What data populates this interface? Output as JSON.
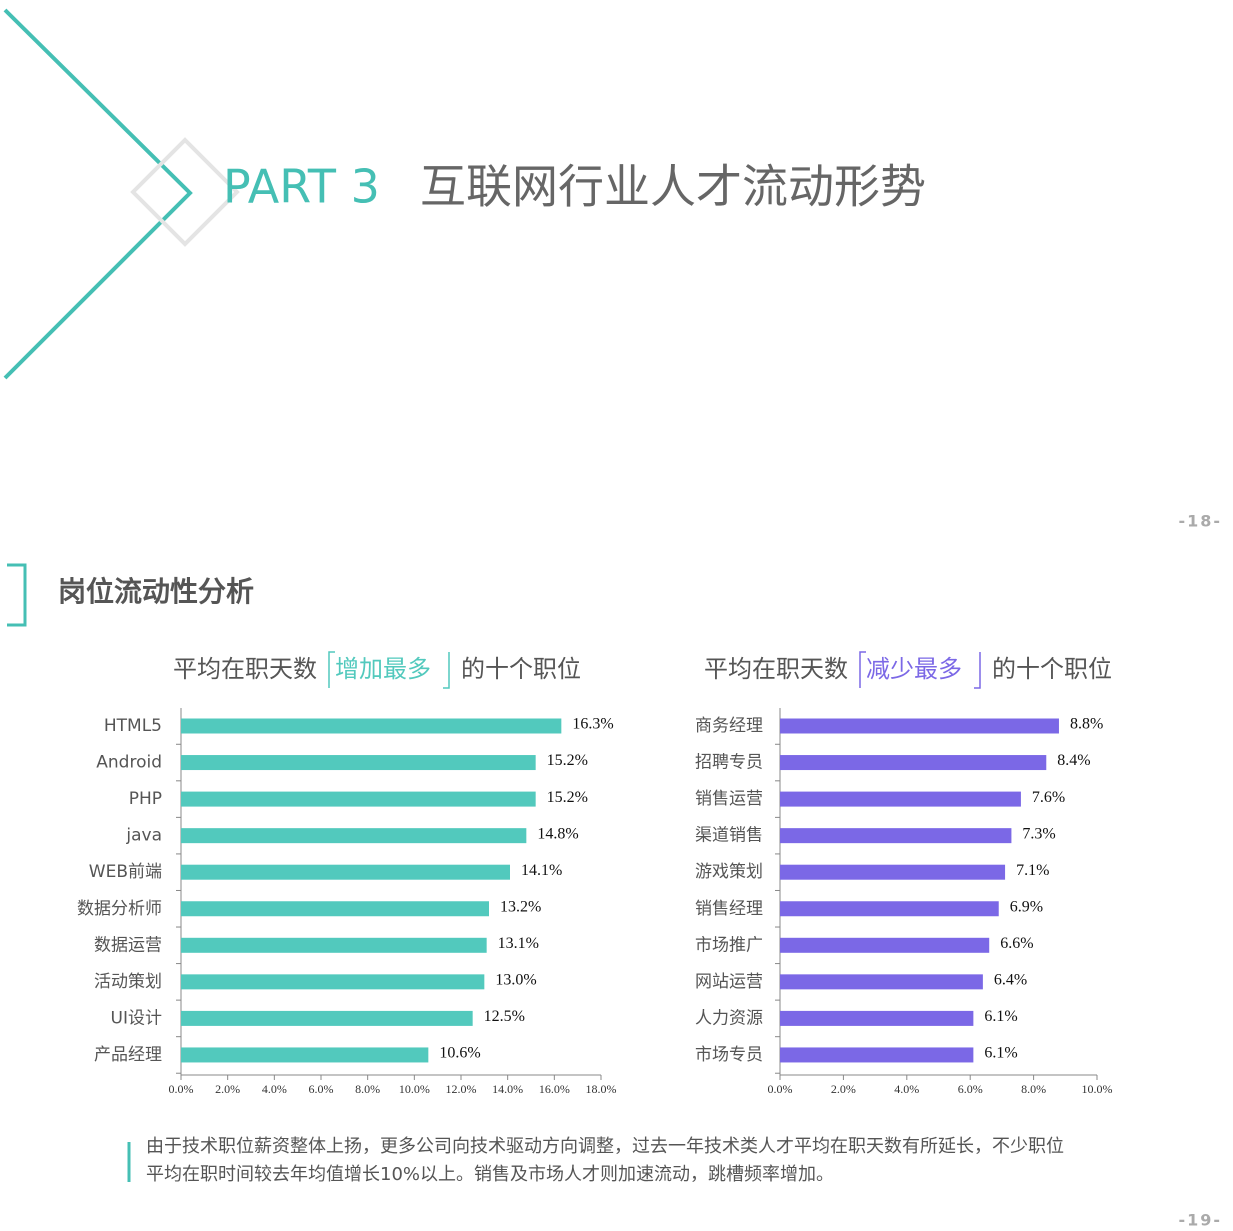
{
  "part": "PART 3",
  "title": "互联网行业人才流动形势",
  "page_top": "-18-",
  "section": "岗位流动性分析",
  "chart_data": [
    {
      "type": "bar",
      "orientation": "horizontal",
      "title_prefix": "平均在职天数",
      "title_highlight": "增加最多",
      "title_suffix": "的十个职位",
      "categories": [
        "HTML5",
        "Android",
        "PHP",
        "java",
        "WEB前端",
        "数据分析师",
        "数据运营",
        "活动策划",
        "UI设计",
        "产品经理"
      ],
      "values": [
        16.3,
        15.2,
        15.2,
        14.8,
        14.1,
        13.2,
        13.1,
        13.0,
        12.5,
        10.6
      ],
      "value_labels": [
        "16.3%",
        "15.2%",
        "15.2%",
        "14.8%",
        "14.1%",
        "13.2%",
        "13.1%",
        "13.0%",
        "12.5%",
        "10.6%"
      ],
      "color": "#52c9bd",
      "xlim": [
        0,
        18
      ],
      "xticks": [
        {
          "value": 0,
          "label": "0.0%"
        },
        {
          "value": 2,
          "label": "2.0%"
        },
        {
          "value": 4,
          "label": "4.0%"
        },
        {
          "value": 6,
          "label": "6.0%"
        },
        {
          "value": 8,
          "label": "8.0%"
        },
        {
          "value": 10,
          "label": "10.0%"
        },
        {
          "value": 12,
          "label": "12.0%"
        },
        {
          "value": 14,
          "label": "14.0%"
        },
        {
          "value": 16,
          "label": "16.0%"
        },
        {
          "value": 18,
          "label": "18.0%"
        }
      ]
    },
    {
      "type": "bar",
      "orientation": "horizontal",
      "title_prefix": "平均在职天数",
      "title_highlight": "减少最多",
      "title_suffix": "的十个职位",
      "categories": [
        "商务经理",
        "招聘专员",
        "销售运营",
        "渠道销售",
        "游戏策划",
        "销售经理",
        "市场推广",
        "网站运营",
        "人力资源",
        "市场专员"
      ],
      "values": [
        8.8,
        8.4,
        7.6,
        7.3,
        7.1,
        6.9,
        6.6,
        6.4,
        6.1,
        6.1
      ],
      "value_labels": [
        "8.8%",
        "8.4%",
        "7.6%",
        "7.3%",
        "7.1%",
        "6.9%",
        "6.6%",
        "6.4%",
        "6.1%",
        "6.1%"
      ],
      "color": "#7b68e6",
      "xlim": [
        0,
        10
      ],
      "xticks": [
        {
          "value": 0,
          "label": "0.0%"
        },
        {
          "value": 2,
          "label": "2.0%"
        },
        {
          "value": 4,
          "label": "4.0%"
        },
        {
          "value": 6,
          "label": "6.0%"
        },
        {
          "value": 8,
          "label": "8.0%"
        },
        {
          "value": 10,
          "label": "10.0%"
        }
      ]
    }
  ],
  "note_lines": [
    "由于技术职位薪资整体上扬，更多公司向技术驱动方向调整，过去一年技术类人才平均在职天数有所延长，不少职位",
    "平均在职时间较去年均值增长10%以上。销售及市场人才则加速流动，跳槽频率增加。"
  ],
  "page_bottom": "-19-"
}
